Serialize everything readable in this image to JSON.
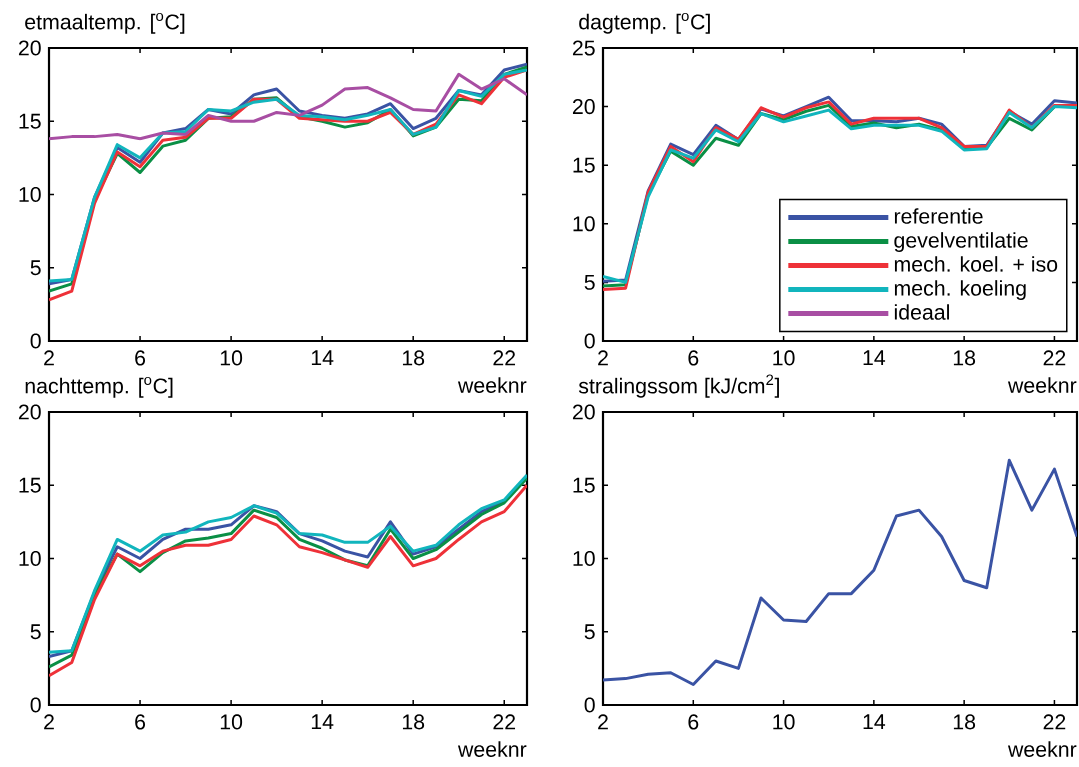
{
  "chart_data": [
    {
      "type": "line",
      "ylabel": "etmaaltemp. [$^{o}$C]",
      "xlabel": "weeknr",
      "x": [
        2,
        3,
        4,
        5,
        6,
        7,
        8,
        9,
        10,
        11,
        12,
        13,
        14,
        15,
        16,
        17,
        18,
        19,
        20,
        21,
        22,
        23
      ],
      "xlim": [
        2,
        23
      ],
      "xticks": [
        2,
        6,
        10,
        14,
        18,
        22
      ],
      "ylim": [
        0,
        20
      ],
      "yticks": [
        0,
        5,
        10,
        15,
        20
      ],
      "line_style": "solid",
      "series": [
        {
          "color": "#3a53a4",
          "values": [
            3.9,
            4.2,
            9.8,
            13.2,
            12.2,
            14.2,
            14.5,
            15.8,
            15.5,
            16.8,
            17.2,
            15.7,
            15.4,
            15.2,
            15.5,
            16.2,
            14.5,
            15.2,
            17.1,
            16.8,
            18.5,
            18.9
          ]
        },
        {
          "color": "#0a8f45",
          "values": [
            3.4,
            3.9,
            9.6,
            12.8,
            11.5,
            13.3,
            13.7,
            15.2,
            15.3,
            16.5,
            16.6,
            15.3,
            15.0,
            14.6,
            14.9,
            15.8,
            14.0,
            14.6,
            16.5,
            16.4,
            18.2,
            18.7
          ]
        },
        {
          "color": "#ee3138",
          "values": [
            2.8,
            3.4,
            9.4,
            12.9,
            11.9,
            13.7,
            13.9,
            15.2,
            15.2,
            16.5,
            16.5,
            15.2,
            15.1,
            15.0,
            15.0,
            15.6,
            14.1,
            14.8,
            16.8,
            16.2,
            18.0,
            18.5
          ]
        },
        {
          "color": "#11b5bd",
          "values": [
            4.1,
            4.2,
            9.8,
            13.4,
            12.5,
            14.2,
            14.3,
            15.8,
            15.7,
            16.3,
            16.5,
            15.4,
            15.3,
            15.1,
            15.4,
            15.8,
            14.1,
            14.6,
            17.1,
            16.7,
            18.2,
            18.5
          ]
        },
        {
          "color": "#a84ea3",
          "values": [
            13.8,
            13.95,
            13.95,
            14.1,
            13.8,
            14.2,
            14.1,
            15.4,
            15.0,
            15.0,
            15.6,
            15.4,
            16.1,
            17.2,
            17.3,
            16.6,
            15.8,
            15.7,
            18.2,
            17.2,
            17.9,
            16.8
          ]
        }
      ]
    },
    {
      "type": "line",
      "ylabel": "dagtemp. [$^{o}$C]",
      "xlabel": "weeknr",
      "x": [
        2,
        3,
        4,
        5,
        6,
        7,
        8,
        9,
        10,
        11,
        12,
        13,
        14,
        15,
        16,
        17,
        18,
        19,
        20,
        21,
        22,
        23
      ],
      "xlim": [
        2,
        23
      ],
      "xticks": [
        2,
        6,
        10,
        14,
        18,
        22
      ],
      "ylim": [
        0,
        25
      ],
      "yticks": [
        0,
        5,
        10,
        15,
        20,
        25
      ],
      "line_style": "solid",
      "legend": "bottom right",
      "series": [
        {
          "name": "referentie",
          "color": "#3a53a4",
          "values": [
            5.1,
            5.2,
            12.8,
            16.8,
            15.9,
            18.4,
            17.2,
            19.8,
            19.2,
            20.0,
            20.8,
            18.8,
            18.8,
            18.7,
            19.0,
            18.5,
            16.6,
            16.7,
            19.6,
            18.5,
            20.5,
            20.3
          ]
        },
        {
          "name": "gevelventilatie",
          "color": "#0a8f45",
          "values": [
            4.7,
            4.8,
            12.5,
            16.2,
            15.0,
            17.3,
            16.7,
            19.4,
            18.9,
            19.6,
            20.1,
            18.3,
            18.6,
            18.2,
            18.5,
            18.0,
            16.5,
            16.5,
            19.0,
            18.0,
            20.0,
            20.0
          ]
        },
        {
          "name": "mech. koel. + iso",
          "color": "#ee3138",
          "values": [
            4.4,
            4.5,
            12.7,
            16.6,
            15.3,
            18.2,
            17.2,
            19.9,
            19.1,
            19.9,
            20.4,
            18.5,
            19.0,
            19.0,
            19.0,
            18.2,
            16.6,
            16.6,
            19.7,
            18.2,
            20.1,
            20.1
          ]
        },
        {
          "name": "mech. koeling",
          "color": "#11b5bd",
          "values": [
            5.5,
            5.0,
            12.3,
            16.3,
            15.6,
            18.0,
            17.0,
            19.4,
            18.7,
            19.2,
            19.7,
            18.1,
            18.4,
            18.4,
            18.4,
            17.9,
            16.3,
            16.4,
            19.5,
            18.2,
            20.0,
            19.9
          ]
        },
        {
          "name": "ideaal",
          "color": "#a84ea3",
          "values": [
            null,
            null,
            null,
            null,
            null,
            null,
            null,
            null,
            null,
            null,
            null,
            null,
            null,
            null,
            null,
            null,
            null,
            null,
            null,
            null,
            null,
            null
          ]
        }
      ]
    },
    {
      "type": "line",
      "ylabel": "nachttemp. [$^{o}$C]",
      "xlabel": "weeknr",
      "x": [
        2,
        3,
        4,
        5,
        6,
        7,
        8,
        9,
        10,
        11,
        12,
        13,
        14,
        15,
        16,
        17,
        18,
        19,
        20,
        21,
        22,
        23
      ],
      "xlim": [
        2,
        23
      ],
      "xticks": [
        2,
        6,
        10,
        14,
        18,
        22
      ],
      "ylim": [
        0,
        20
      ],
      "yticks": [
        0,
        5,
        10,
        15,
        20
      ],
      "line_style": "solid",
      "series": [
        {
          "color": "#3a53a4",
          "values": [
            3.3,
            3.7,
            7.7,
            10.8,
            10.0,
            11.3,
            12.0,
            12.0,
            12.3,
            13.6,
            13.2,
            11.7,
            11.2,
            10.5,
            10.1,
            12.5,
            10.3,
            10.8,
            12.0,
            13.2,
            13.9,
            15.6
          ]
        },
        {
          "color": "#0a8f45",
          "values": [
            2.6,
            3.4,
            7.5,
            10.3,
            9.1,
            10.4,
            11.2,
            11.4,
            11.7,
            13.3,
            12.8,
            11.3,
            10.7,
            9.9,
            9.5,
            12.0,
            10.0,
            10.6,
            11.8,
            13.0,
            13.8,
            15.5
          ]
        },
        {
          "color": "#ee3138",
          "values": [
            2.0,
            2.9,
            7.2,
            10.3,
            9.5,
            10.5,
            10.9,
            10.9,
            11.3,
            12.9,
            12.3,
            10.8,
            10.4,
            9.9,
            9.4,
            11.5,
            9.5,
            10.0,
            11.3,
            12.5,
            13.2,
            15.0
          ]
        },
        {
          "color": "#11b5bd",
          "values": [
            3.6,
            3.7,
            7.8,
            11.3,
            10.5,
            11.6,
            11.8,
            12.5,
            12.8,
            13.6,
            13.1,
            11.7,
            11.6,
            11.1,
            11.1,
            12.2,
            10.5,
            10.9,
            12.3,
            13.4,
            14.0,
            15.7
          ]
        }
      ]
    },
    {
      "type": "line",
      "ylabel": "stralingssom [kJ/cm$^{2}$]",
      "xlabel": "weeknr",
      "x": [
        2,
        3,
        4,
        5,
        6,
        7,
        8,
        9,
        10,
        11,
        12,
        13,
        14,
        15,
        16,
        17,
        18,
        19,
        20,
        21,
        22,
        23
      ],
      "xlim": [
        2,
        23
      ],
      "xticks": [
        2,
        6,
        10,
        14,
        18,
        22
      ],
      "ylim": [
        0,
        20
      ],
      "yticks": [
        0,
        5,
        10,
        15,
        20
      ],
      "line_style": "solid",
      "series": [
        {
          "color": "#3a53a4",
          "values": [
            1.7,
            1.8,
            2.1,
            2.2,
            1.4,
            3.0,
            2.5,
            7.3,
            5.8,
            5.7,
            7.6,
            7.6,
            9.2,
            12.9,
            13.3,
            11.5,
            8.5,
            8.0,
            16.7,
            13.3,
            16.1,
            11.5
          ]
        }
      ]
    }
  ]
}
